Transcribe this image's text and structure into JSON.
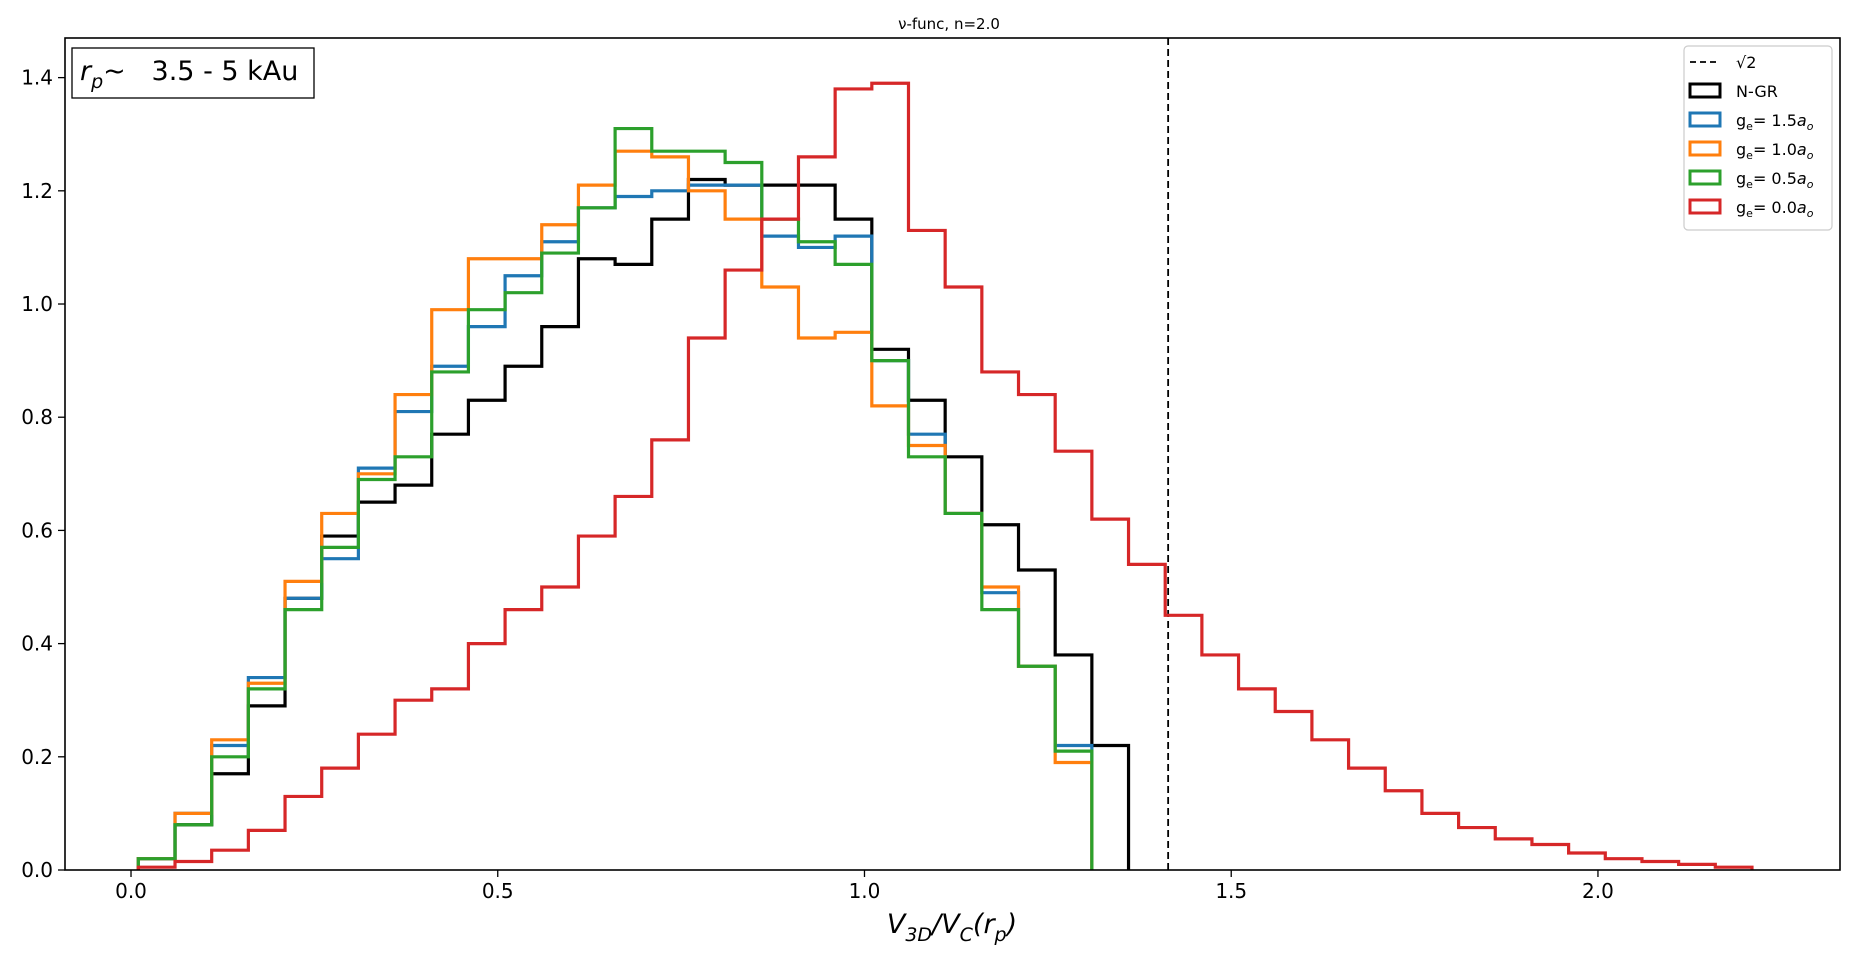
{
  "chart_data": {
    "type": "step-histogram",
    "title": "ν-func, n=2.0",
    "xlabel": {
      "main": "V",
      "sub1": "3D",
      "mid": "/V",
      "sub2": "C",
      "tail1": "(r",
      "sub3": "p",
      "tail2": ")"
    },
    "ylabel": "",
    "xlim": [
      -0.09,
      2.33
    ],
    "ylim": [
      0.0,
      1.47
    ],
    "xticks": [
      0.0,
      0.5,
      1.0,
      1.5,
      2.0
    ],
    "xtick_labels": [
      "0.0",
      "0.5",
      "1.0",
      "1.5",
      "2.0"
    ],
    "yticks": [
      0.0,
      0.2,
      0.4,
      0.6,
      0.8,
      1.0,
      1.2,
      1.4
    ],
    "ytick_labels": [
      "0.0",
      "0.2",
      "0.4",
      "0.6",
      "0.8",
      "1.0",
      "1.2",
      "1.4"
    ],
    "grid": false,
    "legend_position": "top-right",
    "annotation": {
      "r": "r",
      "sub": "p",
      "text": "~   3.5 - 5 kAu"
    },
    "vline": {
      "x": 1.414,
      "label": "√2",
      "color": "#000000",
      "style": "dashed"
    },
    "series": [
      {
        "name": "N-GR",
        "color": "#000000",
        "edges": [
          0.01,
          0.06,
          0.11,
          0.16,
          0.21,
          0.26,
          0.31,
          0.36,
          0.41,
          0.46,
          0.51,
          0.56,
          0.61,
          0.66,
          0.71,
          0.76,
          0.81,
          0.86,
          0.91,
          0.96,
          1.01,
          1.06,
          1.11,
          1.16,
          1.21,
          1.26,
          1.31,
          1.36
        ],
        "values": [
          0.02,
          0.08,
          0.17,
          0.29,
          0.48,
          0.59,
          0.65,
          0.68,
          0.77,
          0.83,
          0.89,
          0.96,
          1.08,
          1.07,
          1.15,
          1.22,
          1.21,
          1.21,
          1.21,
          1.15,
          0.92,
          0.83,
          0.73,
          0.61,
          0.53,
          0.38,
          0.22
        ]
      },
      {
        "name": "g_e= 1.5a_o",
        "label_main": "g",
        "label_sub": "e",
        "label_mid": "= 1.5",
        "label_it": "a",
        "label_sub2": "o",
        "color": "#1f77b4",
        "edges": [
          0.01,
          0.06,
          0.11,
          0.16,
          0.21,
          0.26,
          0.31,
          0.36,
          0.41,
          0.46,
          0.51,
          0.56,
          0.61,
          0.66,
          0.71,
          0.76,
          0.81,
          0.86,
          0.91,
          0.96,
          1.01,
          1.06,
          1.11,
          1.16,
          1.21,
          1.26,
          1.31
        ],
        "values": [
          0.02,
          0.1,
          0.22,
          0.34,
          0.48,
          0.55,
          0.71,
          0.81,
          0.89,
          0.96,
          1.05,
          1.11,
          1.17,
          1.19,
          1.2,
          1.21,
          1.21,
          1.12,
          1.1,
          1.12,
          0.9,
          0.77,
          0.63,
          0.49,
          0.36,
          0.22
        ]
      },
      {
        "name": "g_e= 1.0a_o",
        "label_main": "g",
        "label_sub": "e",
        "label_mid": "= 1.0",
        "label_it": "a",
        "label_sub2": "o",
        "color": "#ff7f0e",
        "edges": [
          0.01,
          0.06,
          0.11,
          0.16,
          0.21,
          0.26,
          0.31,
          0.36,
          0.41,
          0.46,
          0.51,
          0.56,
          0.61,
          0.66,
          0.71,
          0.76,
          0.81,
          0.86,
          0.91,
          0.96,
          1.01,
          1.06,
          1.11,
          1.16,
          1.21,
          1.26,
          1.31
        ],
        "values": [
          0.02,
          0.1,
          0.23,
          0.33,
          0.51,
          0.63,
          0.7,
          0.84,
          0.99,
          1.08,
          1.08,
          1.14,
          1.21,
          1.27,
          1.26,
          1.2,
          1.15,
          1.03,
          0.94,
          0.95,
          0.82,
          0.75,
          0.63,
          0.5,
          0.36,
          0.19
        ]
      },
      {
        "name": "g_e= 0.5a_o",
        "label_main": "g",
        "label_sub": "e",
        "label_mid": "= 0.5",
        "label_it": "a",
        "label_sub2": "o",
        "color": "#2ca02c",
        "edges": [
          0.01,
          0.06,
          0.11,
          0.16,
          0.21,
          0.26,
          0.31,
          0.36,
          0.41,
          0.46,
          0.51,
          0.56,
          0.61,
          0.66,
          0.71,
          0.76,
          0.81,
          0.86,
          0.91,
          0.96,
          1.01,
          1.06,
          1.11,
          1.16,
          1.21,
          1.26,
          1.31
        ],
        "values": [
          0.02,
          0.08,
          0.2,
          0.32,
          0.46,
          0.57,
          0.69,
          0.73,
          0.88,
          0.99,
          1.02,
          1.09,
          1.17,
          1.31,
          1.27,
          1.27,
          1.25,
          1.15,
          1.11,
          1.07,
          0.9,
          0.73,
          0.63,
          0.46,
          0.36,
          0.21
        ]
      },
      {
        "name": "g_e= 0.0a_o",
        "label_main": "g",
        "label_sub": "e",
        "label_mid": "= 0.0",
        "label_it": "a",
        "label_sub2": "o",
        "color": "#d62728",
        "edges": [
          0.01,
          0.06,
          0.11,
          0.16,
          0.21,
          0.26,
          0.31,
          0.36,
          0.41,
          0.46,
          0.51,
          0.56,
          0.61,
          0.66,
          0.71,
          0.76,
          0.81,
          0.86,
          0.91,
          0.96,
          1.01,
          1.06,
          1.11,
          1.16,
          1.21,
          1.26,
          1.31,
          1.36,
          1.41,
          1.46,
          1.51,
          1.56,
          1.61,
          1.66,
          1.71,
          1.76,
          1.81,
          1.86,
          1.91,
          1.96,
          2.01,
          2.06,
          2.11,
          2.16,
          2.21
        ],
        "values": [
          0.005,
          0.015,
          0.035,
          0.07,
          0.13,
          0.18,
          0.24,
          0.3,
          0.32,
          0.4,
          0.46,
          0.5,
          0.59,
          0.66,
          0.76,
          0.94,
          1.06,
          1.15,
          1.26,
          1.38,
          1.39,
          1.13,
          1.03,
          0.88,
          0.84,
          0.74,
          0.62,
          0.54,
          0.45,
          0.38,
          0.32,
          0.28,
          0.23,
          0.18,
          0.14,
          0.1,
          0.075,
          0.055,
          0.045,
          0.03,
          0.02,
          0.015,
          0.01,
          0.005
        ]
      }
    ]
  }
}
